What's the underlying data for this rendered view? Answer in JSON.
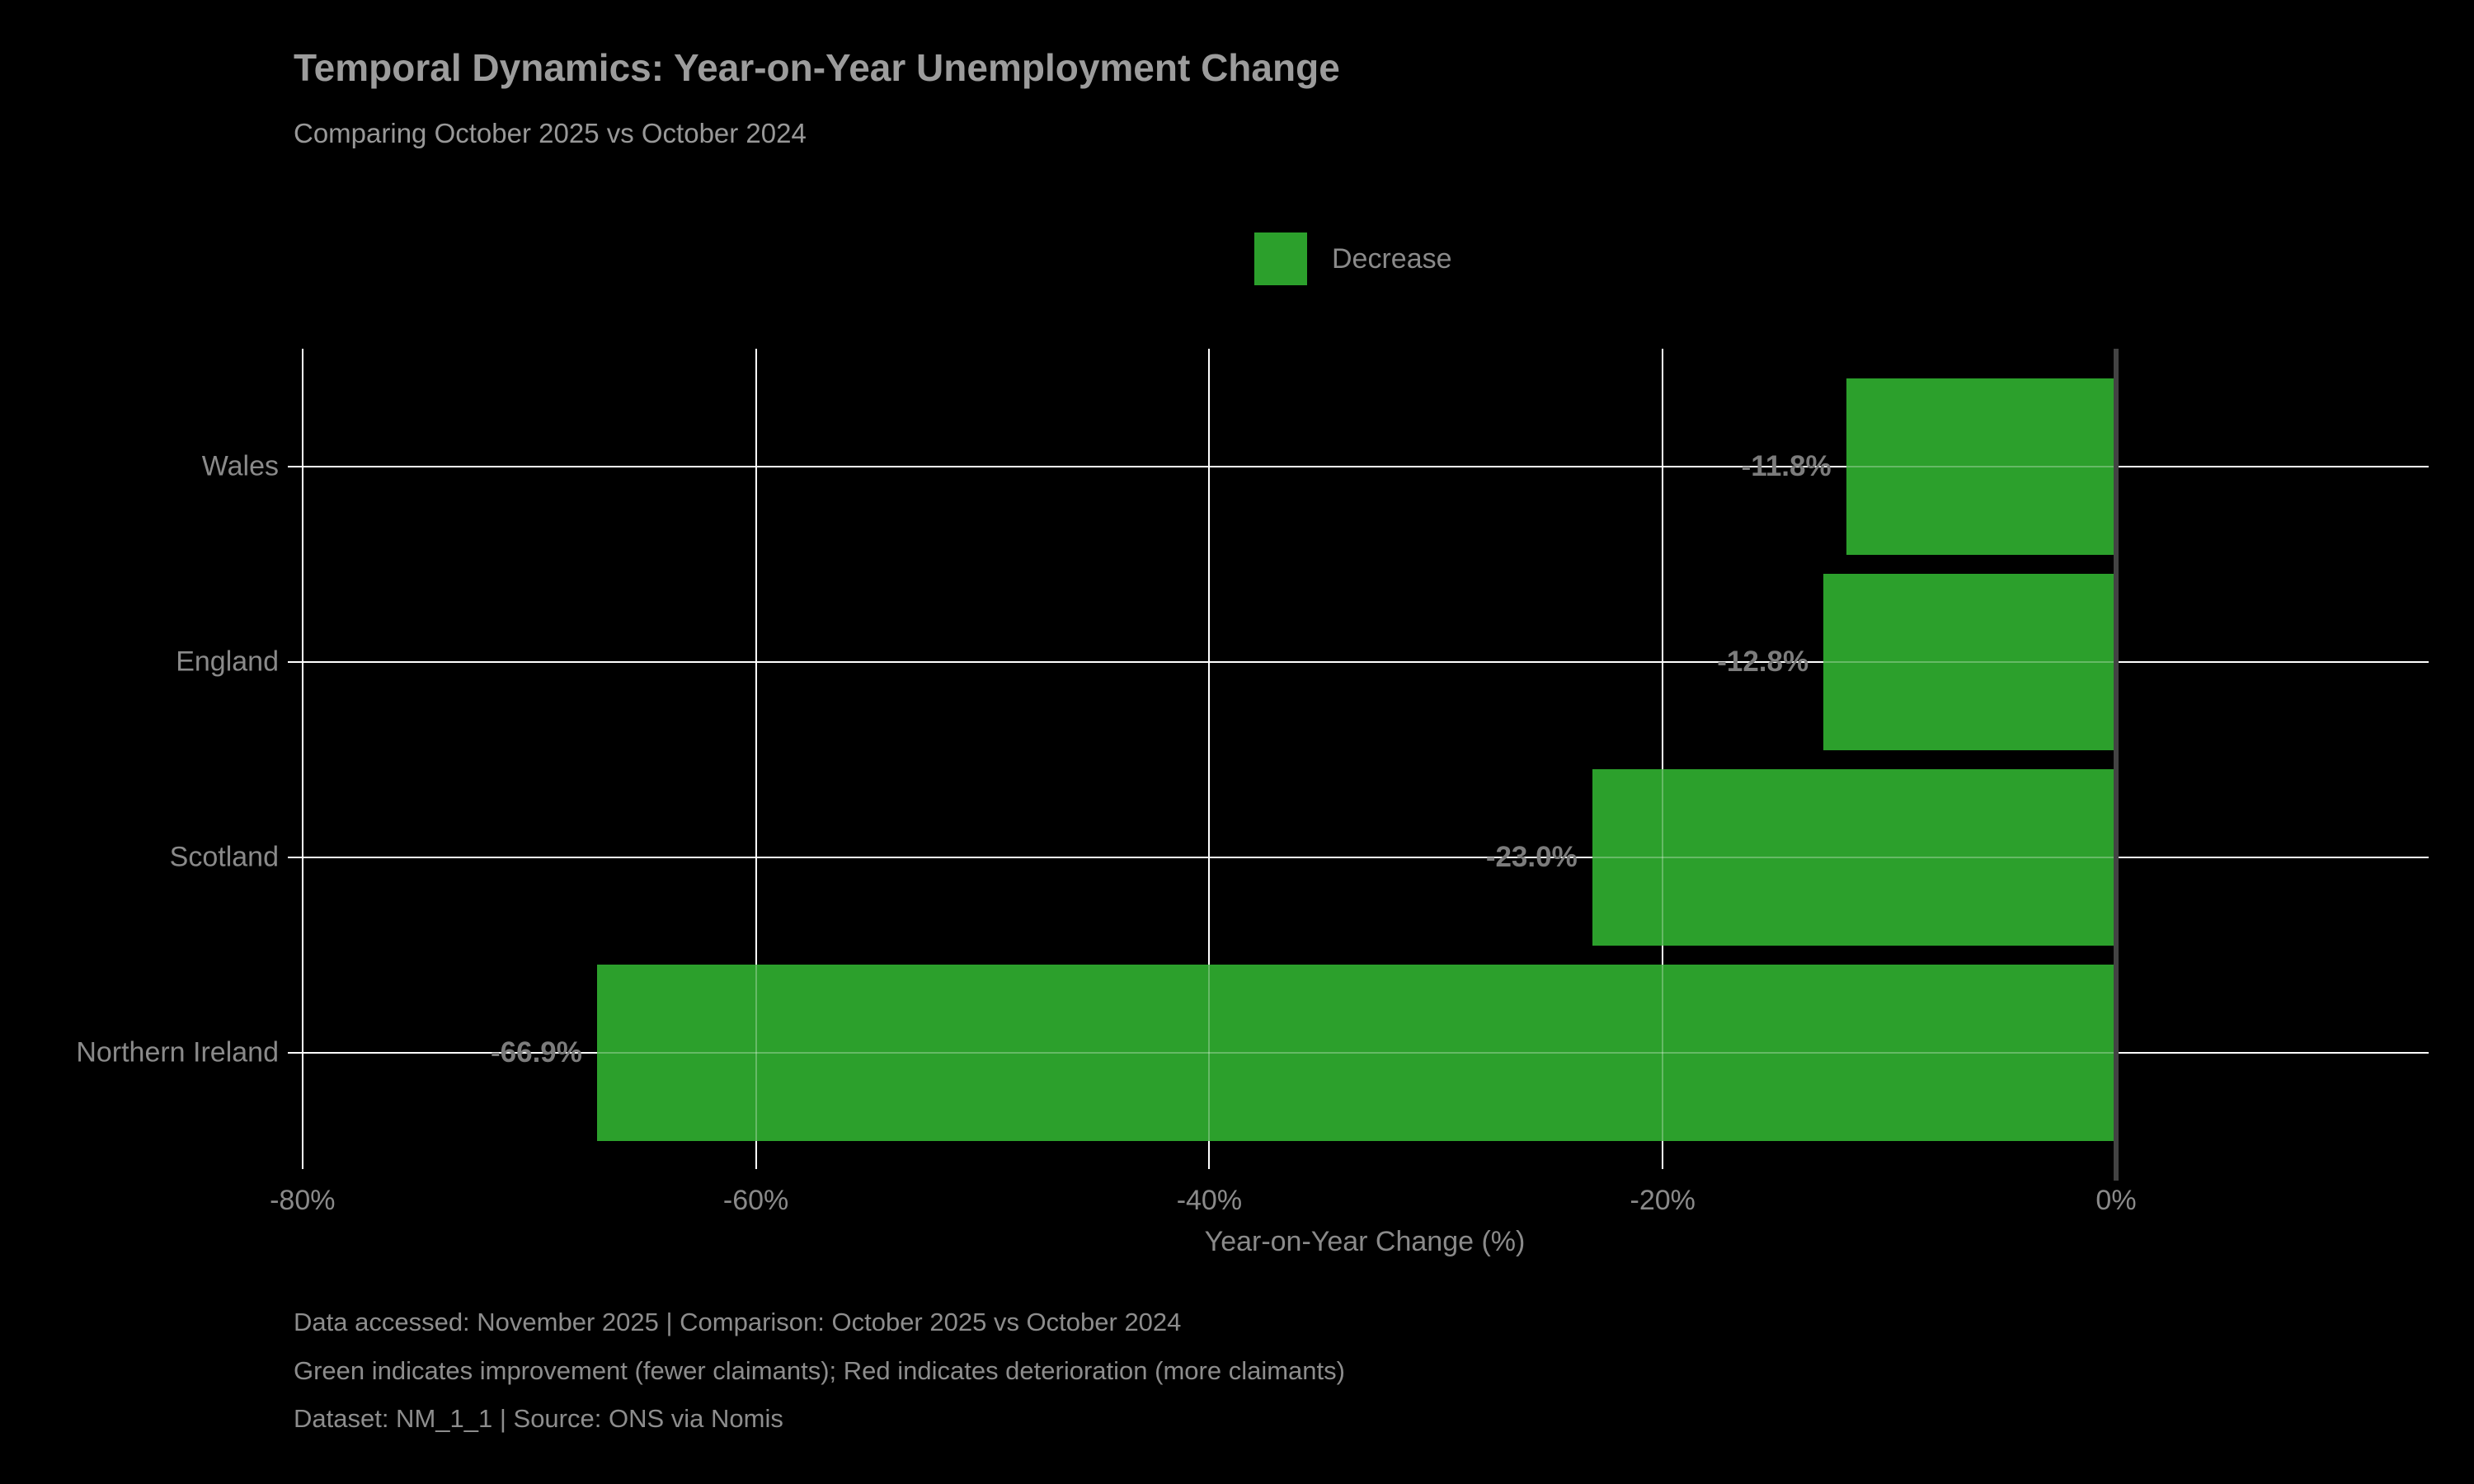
{
  "page": {
    "background_color": "#000000",
    "text_color_muted": "#8a8a8a"
  },
  "header": {
    "title": "Temporal Dynamics: Year-on-Year Unemployment Change",
    "subtitle": "Comparing October 2025 vs October 2024"
  },
  "legend": {
    "position": "top-center",
    "items": [
      {
        "label": "Decrease",
        "color": "#2ca02c"
      }
    ]
  },
  "chart_data": {
    "type": "bar",
    "orientation": "horizontal",
    "title": "Temporal Dynamics: Year-on-Year Unemployment Change",
    "subtitle": "Comparing October 2025 vs October 2024",
    "categories": [
      "Wales",
      "England",
      "Scotland",
      "Northern Ireland"
    ],
    "values": [
      -11.8,
      -12.8,
      -23.0,
      -66.9
    ],
    "value_labels": [
      "-11.8%",
      "-12.8%",
      "-23.0%",
      "-66.9%"
    ],
    "series_name": "Decrease",
    "bar_color": "#2ca02c",
    "xlabel": "Year-on-Year Change (%)",
    "ylabel": "",
    "xlim": [
      -80,
      13.8
    ],
    "x_ticks": [
      -80,
      -60,
      -40,
      -20,
      0
    ],
    "x_tick_labels": [
      "-80%",
      "-60%",
      "-40%",
      "-20%",
      "0%"
    ],
    "grid": true,
    "grid_color": "#ffffff",
    "zero_line_color": "#434343",
    "background_color": "#000000"
  },
  "footer": {
    "lines": [
      "Data accessed: November 2025 | Comparison: October 2025 vs October 2024",
      "Green indicates improvement (fewer claimants); Red indicates deterioration (more claimants)",
      "Dataset: NM_1_1 | Source: ONS via Nomis"
    ]
  }
}
